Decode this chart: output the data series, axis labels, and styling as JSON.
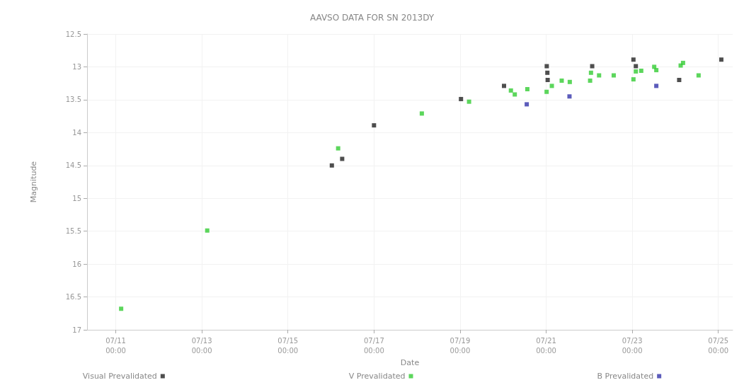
{
  "chart_data": {
    "type": "scatter",
    "title": "AAVSO DATA FOR SN 2013DY",
    "xlabel": "Date",
    "ylabel": "Magnitude",
    "xlim": [
      "2013-07-10T08:00",
      "2013-07-25T08:00"
    ],
    "xticks": [
      {
        "value": "2013-07-11T00:00",
        "label": "07/11\n00:00"
      },
      {
        "value": "2013-07-13T00:00",
        "label": "07/13\n00:00"
      },
      {
        "value": "2013-07-15T00:00",
        "label": "07/15\n00:00"
      },
      {
        "value": "2013-07-17T00:00",
        "label": "07/17\n00:00"
      },
      {
        "value": "2013-07-19T00:00",
        "label": "07/19\n00:00"
      },
      {
        "value": "2013-07-21T00:00",
        "label": "07/21\n00:00"
      },
      {
        "value": "2013-07-23T00:00",
        "label": "07/23\n00:00"
      },
      {
        "value": "2013-07-25T00:00",
        "label": "07/25\n00:00"
      }
    ],
    "ylim": [
      17,
      12.5
    ],
    "yticks": [
      12.5,
      13,
      13.5,
      14,
      14.5,
      15,
      15.5,
      16,
      16.5,
      17
    ],
    "grid": true,
    "legend": "bottom",
    "marker": "square",
    "series": [
      {
        "name": "Visual Prevalidated",
        "color": "#222222",
        "x": [
          "2013-07-16T00:30",
          "2013-07-16T06:15",
          "2013-07-17T00:00",
          "2013-07-19T00:30",
          "2013-07-20T00:30",
          "2013-07-21T00:20",
          "2013-07-21T00:40",
          "2013-07-21T00:50",
          "2013-07-22T01:40",
          "2013-07-23T00:40",
          "2013-07-23T02:00",
          "2013-07-24T02:10",
          "2013-07-25T01:40"
        ],
        "values": [
          14.5,
          14.4,
          13.89,
          13.49,
          13.29,
          12.99,
          13.09,
          13.2,
          12.99,
          12.89,
          12.99,
          13.2,
          12.89
        ]
      },
      {
        "name": "V Prevalidated",
        "color": "#33cc33",
        "x": [
          "2013-07-11T03:00",
          "2013-07-13T03:00",
          "2013-07-16T04:00",
          "2013-07-18T02:40",
          "2013-07-19T05:00",
          "2013-07-20T04:20",
          "2013-07-20T06:30",
          "2013-07-20T13:30",
          "2013-07-21T03:10",
          "2013-07-21T00:15",
          "2013-07-21T08:40",
          "2013-07-21T13:10",
          "2013-07-22T01:00",
          "2013-07-22T05:30",
          "2013-07-22T00:30",
          "2013-07-22T13:40",
          "2013-07-23T02:00",
          "2013-07-23T05:00",
          "2013-07-23T00:40",
          "2013-07-23T12:15",
          "2013-07-23T13:25",
          "2013-07-24T03:00",
          "2013-07-24T04:20",
          "2013-07-24T13:00"
        ],
        "values": [
          16.68,
          15.49,
          14.24,
          13.71,
          13.53,
          13.36,
          13.42,
          13.34,
          13.29,
          13.38,
          13.21,
          13.23,
          13.09,
          13.13,
          13.21,
          13.13,
          13.07,
          13.06,
          13.19,
          13.0,
          13.05,
          12.98,
          12.94,
          13.13
        ]
      },
      {
        "name": "B Prevalidated",
        "color": "#3333aa",
        "x": [
          "2013-07-20T13:10",
          "2013-07-21T13:00",
          "2013-07-23T13:25"
        ],
        "values": [
          13.57,
          13.45,
          13.29
        ]
      }
    ]
  }
}
